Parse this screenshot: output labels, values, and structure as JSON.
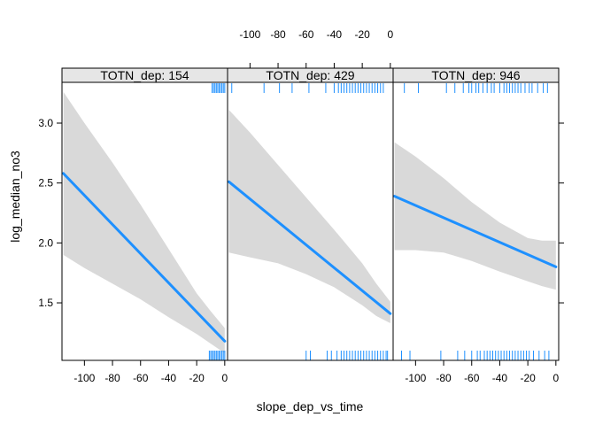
{
  "chart_data": {
    "type": "line",
    "xlabel": "slope_dep_vs_time",
    "ylabel": "log_median_no3",
    "xlim": [
      -116,
      2
    ],
    "ylim": [
      1.02,
      3.34
    ],
    "x_ticks": [
      -100,
      -80,
      -60,
      -40,
      -20,
      0
    ],
    "y_ticks": [
      1.5,
      2.0,
      2.5,
      3.0
    ],
    "y_tick_labels": [
      "1.5",
      "2.0",
      "2.5",
      "3.0"
    ],
    "line_color": "#1e90ff",
    "band_color": "#d9d9d9",
    "strip_color": "#e6e6e6",
    "panels": [
      {
        "label": "TOTN_dep: 154",
        "fit": {
          "x": [
            -115,
            0
          ],
          "y": [
            2.58,
            1.18
          ]
        },
        "band": {
          "x": [
            -115,
            -100,
            -80,
            -60,
            -40,
            -20,
            -10,
            0
          ],
          "lower": [
            1.9,
            1.79,
            1.66,
            1.53,
            1.38,
            1.24,
            1.16,
            1.08
          ],
          "upper": [
            3.26,
            3.0,
            2.67,
            2.32,
            1.95,
            1.58,
            1.43,
            1.29
          ]
        },
        "rug_top": [
          -9,
          -8,
          -7,
          -6,
          -5,
          -4,
          -3,
          -2,
          -1,
          0
        ],
        "rug_bottom": [
          -11,
          -10,
          -9,
          -8,
          -7,
          -6,
          -5,
          -4,
          -3,
          -2,
          -1,
          0
        ]
      },
      {
        "label": "TOTN_dep: 429",
        "fit": {
          "x": [
            -115,
            0
          ],
          "y": [
            2.51,
            1.41
          ]
        },
        "band": {
          "x": [
            -115,
            -100,
            -80,
            -60,
            -40,
            -20,
            -10,
            0
          ],
          "lower": [
            1.92,
            1.88,
            1.83,
            1.74,
            1.63,
            1.48,
            1.39,
            1.33
          ],
          "upper": [
            3.11,
            2.92,
            2.65,
            2.38,
            2.11,
            1.83,
            1.66,
            1.51
          ]
        },
        "rug_top": [
          -113,
          -90,
          -79,
          -70,
          -58,
          -46,
          -40,
          -37,
          -35,
          -33,
          -31,
          -29,
          -27,
          -25,
          -23,
          -21,
          -19,
          -17,
          -15,
          -13,
          -11,
          -9,
          -7,
          -5
        ],
        "rug_bottom": [
          -60,
          -57,
          -45,
          -42,
          -38,
          -35,
          -33,
          -31,
          -29,
          -27,
          -25,
          -23,
          -21,
          -19,
          -17,
          -15,
          -13,
          -11,
          -9,
          -7,
          -5,
          -3,
          -2
        ]
      },
      {
        "label": "TOTN_dep: 946",
        "fit": {
          "x": [
            -115,
            0
          ],
          "y": [
            2.39,
            1.8
          ]
        },
        "band": {
          "x": [
            -115,
            -100,
            -80,
            -60,
            -40,
            -20,
            -10,
            0
          ],
          "lower": [
            1.94,
            1.94,
            1.92,
            1.85,
            1.76,
            1.68,
            1.64,
            1.61
          ],
          "upper": [
            2.84,
            2.72,
            2.54,
            2.34,
            2.17,
            2.04,
            2.02,
            2.02
          ]
        },
        "rug_top": [
          -108,
          -98,
          -78,
          -72,
          -66,
          -62,
          -60,
          -57,
          -55,
          -52,
          -49,
          -46,
          -44,
          -40,
          -37,
          -35,
          -33,
          -31,
          -29,
          -27,
          -25,
          -22,
          -19,
          -17,
          -13,
          -9,
          -6
        ],
        "rug_bottom": [
          -110,
          -104,
          -82,
          -70,
          -65,
          -60,
          -56,
          -54,
          -51,
          -49,
          -47,
          -45,
          -43,
          -41,
          -39,
          -37,
          -35,
          -33,
          -31,
          -29,
          -27,
          -25,
          -23,
          -21,
          -19,
          -16,
          -12,
          -8,
          -5
        ]
      }
    ]
  }
}
